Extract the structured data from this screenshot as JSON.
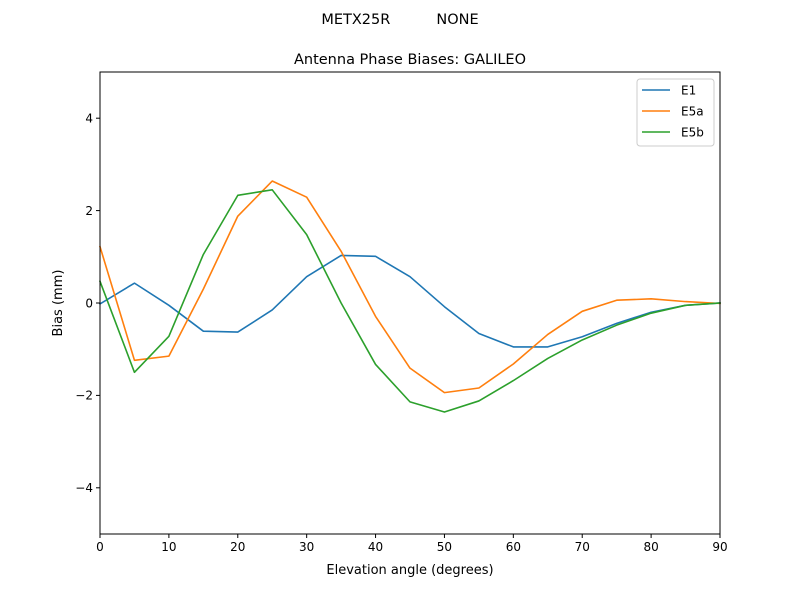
{
  "suptitle": "METX25R          NONE",
  "chart_data": {
    "type": "line",
    "title": "Antenna Phase Biases: GALILEO",
    "xlabel": "Elevation angle (degrees)",
    "ylabel": "Bias (mm)",
    "xlim": [
      0,
      90
    ],
    "ylim": [
      -5,
      5
    ],
    "xticks": [
      0,
      10,
      20,
      30,
      40,
      50,
      60,
      70,
      80,
      90
    ],
    "yticks": [
      -4,
      -2,
      0,
      2,
      4
    ],
    "ytick_labels": [
      "−4",
      "−2",
      "0",
      "2",
      "4"
    ],
    "grid": false,
    "legend_position": "top-right",
    "x": [
      0,
      5,
      10,
      15,
      20,
      25,
      30,
      35,
      40,
      45,
      50,
      55,
      60,
      65,
      70,
      75,
      80,
      85,
      90
    ],
    "series": [
      {
        "name": "E1",
        "color": "#1f77b4",
        "values": [
          -0.02,
          0.43,
          -0.05,
          -0.61,
          -0.63,
          -0.15,
          0.57,
          1.03,
          1.01,
          0.57,
          -0.08,
          -0.66,
          -0.95,
          -0.95,
          -0.73,
          -0.44,
          -0.2,
          -0.05,
          0.0
        ]
      },
      {
        "name": "E5a",
        "color": "#ff7f0e",
        "values": [
          1.22,
          -1.24,
          -1.15,
          0.3,
          1.88,
          2.64,
          2.29,
          1.12,
          -0.29,
          -1.41,
          -1.94,
          -1.84,
          -1.32,
          -0.68,
          -0.18,
          0.06,
          0.09,
          0.03,
          -0.01
        ]
      },
      {
        "name": "E5b",
        "color": "#2ca02c",
        "values": [
          0.47,
          -1.5,
          -0.72,
          1.05,
          2.33,
          2.45,
          1.48,
          0.0,
          -1.33,
          -2.14,
          -2.36,
          -2.12,
          -1.68,
          -1.2,
          -0.8,
          -0.48,
          -0.22,
          -0.05,
          0.0
        ]
      }
    ]
  }
}
